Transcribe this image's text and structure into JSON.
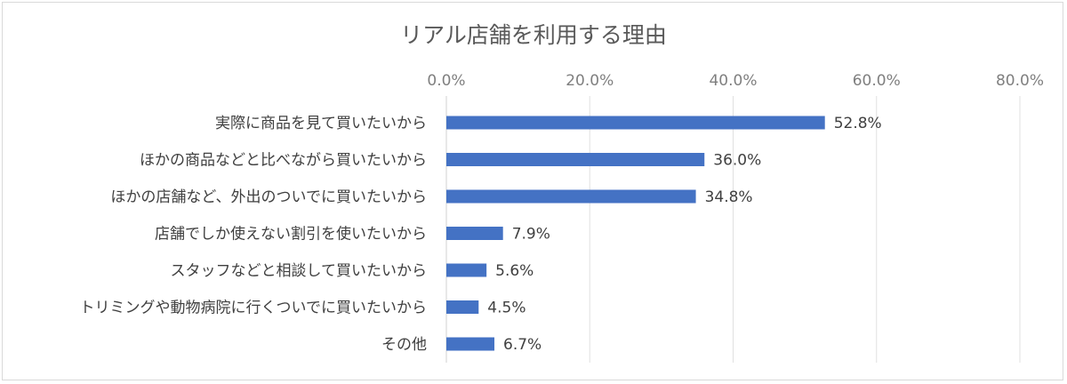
{
  "chart_data": {
    "type": "bar",
    "orientation": "horizontal",
    "title": "リアル店舗を利用する理由",
    "categories": [
      "実際に商品を見て買いたいから",
      "ほかの商品などと比べながら買いたいから",
      "ほかの店舗など、外出のついでに買いたいから",
      "店舗でしか使えない割引を使いたいから",
      "スタッフなどと相談して買いたいから",
      "トリミングや動物病院に行くついでに買いたいから",
      "その他"
    ],
    "values": [
      52.8,
      36.0,
      34.8,
      7.9,
      5.6,
      4.5,
      6.7
    ],
    "value_labels": [
      "52.8%",
      "36.0%",
      "34.8%",
      "7.9%",
      "5.6%",
      "4.5%",
      "6.7%"
    ],
    "xlim": [
      0,
      80
    ],
    "ticks": [
      0,
      20,
      40,
      60,
      80
    ],
    "tick_labels": [
      "0.0%",
      "20.0%",
      "40.0%",
      "60.0%",
      "80.0%"
    ],
    "axis_position": "top",
    "grid": true,
    "legend": "none",
    "bar_color": "#4472c4"
  }
}
